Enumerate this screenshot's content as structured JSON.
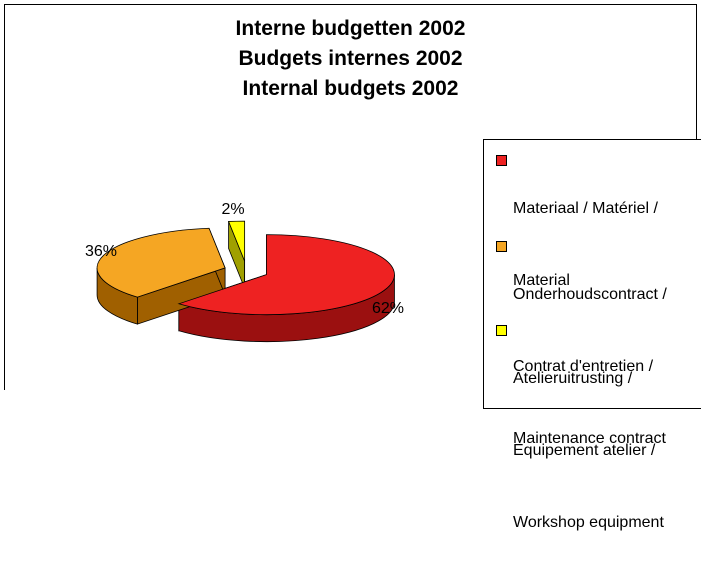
{
  "chart_data": {
    "type": "pie",
    "title": "Interne budgetten 2002",
    "subtitle_fr": "Budgets internes 2002",
    "subtitle_en": "Internal budgets 2002",
    "categories": [
      "Materiaal / Matériel / Material",
      "Onderhoudscontract / Contrat d'entretien / Maintenance contract",
      "Atelieruitrusting / Equipement atelier / Workshop equipment"
    ],
    "values": [
      62,
      36,
      2
    ],
    "value_labels": [
      "62%",
      "36%",
      "2%"
    ],
    "colors": [
      "#ee2222",
      "#f5a623",
      "#ffff00"
    ],
    "side_colors": [
      "#9b1010",
      "#a06000",
      "#a0a000"
    ],
    "legend_position": "right",
    "three_d": true,
    "exploded": true
  },
  "legend": {
    "entries": [
      {
        "lines": [
          "Materiaal / Matériel /",
          "Material"
        ]
      },
      {
        "lines": [
          "Onderhoudscontract /",
          "Contrat d'entretien /",
          "Maintenance contract"
        ]
      },
      {
        "lines": [
          "Atelieruitrusting /",
          "Equipement atelier /",
          "Workshop equipment"
        ]
      }
    ]
  }
}
